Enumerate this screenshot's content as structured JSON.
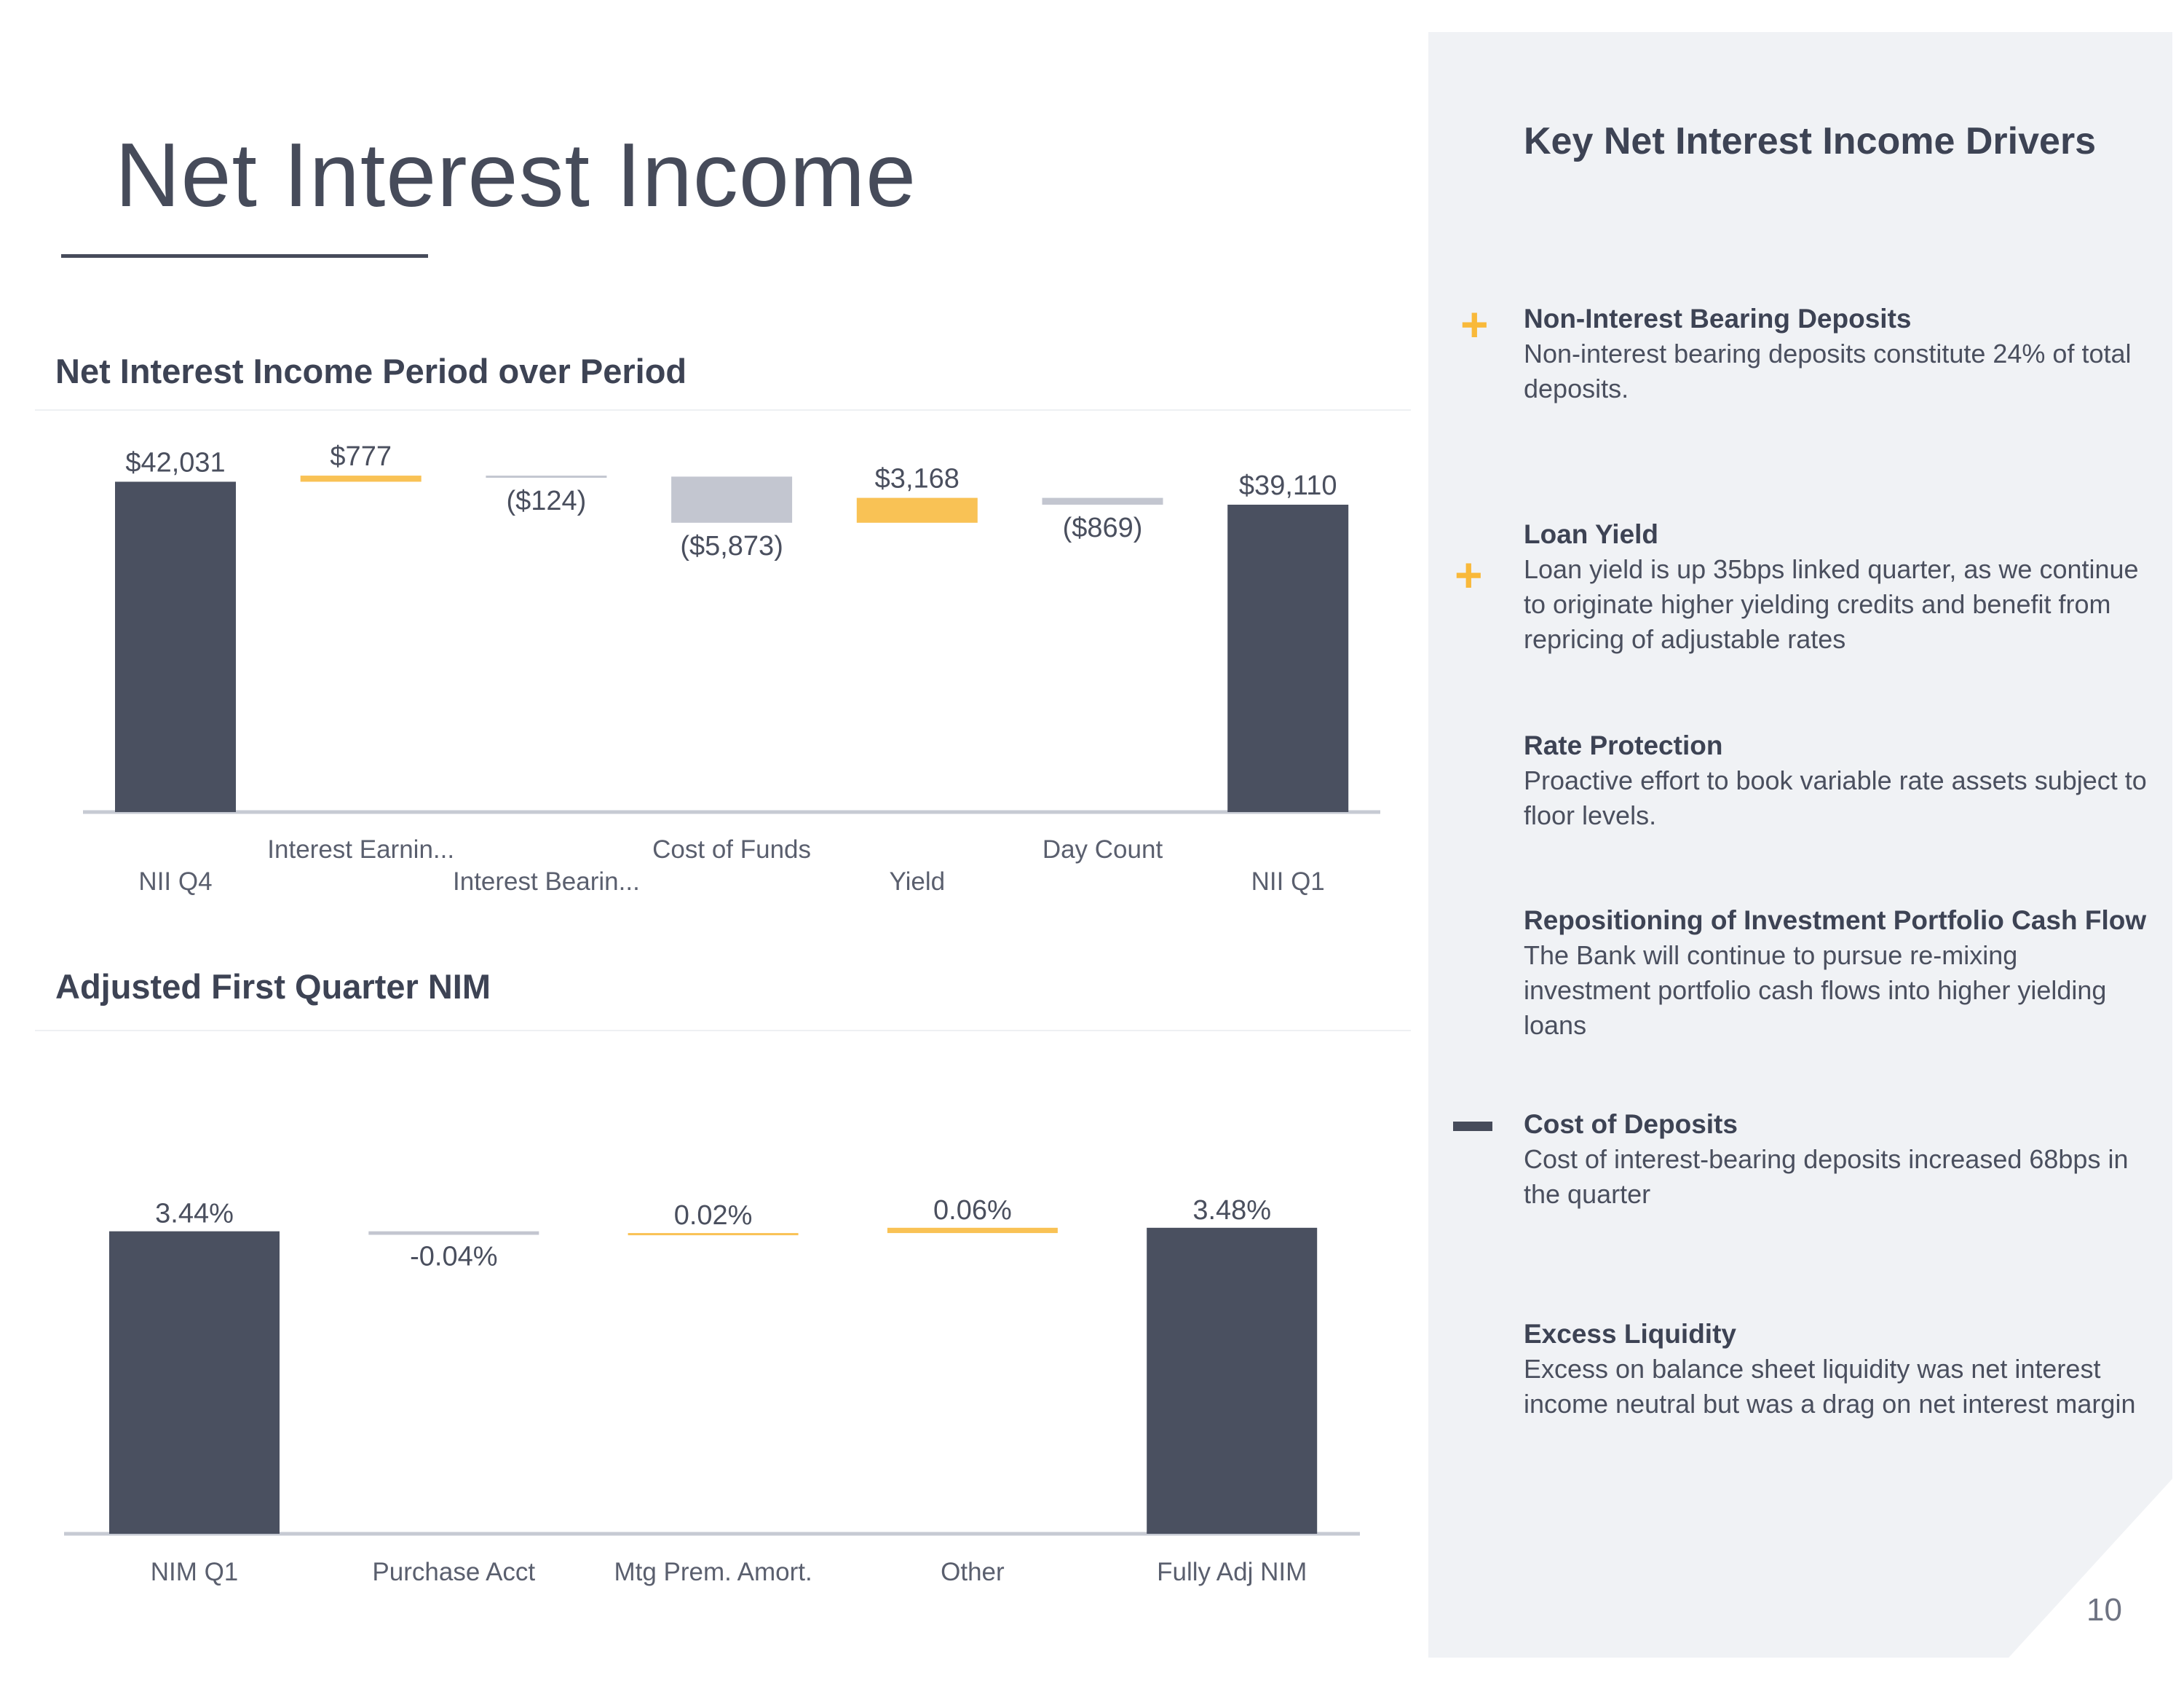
{
  "page": {
    "title": "Net Interest Income",
    "page_number": "10"
  },
  "colors": {
    "dark": "#4a5060",
    "gray": "#c3c6d0",
    "gold": "#f9c255",
    "axis": "#c6cad3"
  },
  "chart_data": [
    {
      "type": "bar",
      "subtype": "waterfall",
      "title": "Net Interest Income Period over Period",
      "categories": [
        "NII Q4",
        "Interest Earnin...",
        "Interest Bearin...",
        "Cost of Funds",
        "Yield",
        "Day Count",
        "NII Q1"
      ],
      "values": [
        42031,
        777,
        -124,
        -5873,
        3168,
        -869,
        39110
      ],
      "labels": [
        "$42,031",
        "$777",
        "($124)",
        "($5,873)",
        "$3,168",
        "($869)",
        "$39,110"
      ],
      "kinds": [
        "total",
        "increase",
        "decrease",
        "decrease",
        "increase",
        "decrease",
        "total"
      ],
      "axis_min": 0,
      "axis_max": 43000,
      "gridlines": false,
      "value_axis_shown": false
    },
    {
      "type": "bar",
      "subtype": "waterfall",
      "title": "Adjusted First Quarter NIM",
      "categories": [
        "NIM Q1",
        "Purchase Acct",
        "Mtg Prem. Amort.",
        "Other",
        "Fully Adj NIM"
      ],
      "values": [
        3.44,
        -0.04,
        0.02,
        0.06,
        3.48
      ],
      "labels": [
        "3.44%",
        "-0.04%",
        "0.02%",
        "0.06%",
        "3.48%"
      ],
      "kinds": [
        "total",
        "decrease",
        "increase",
        "increase",
        "total"
      ],
      "axis_min": 0,
      "axis_max": 3.52,
      "gridlines": false,
      "value_axis_shown": false
    }
  ],
  "panel": {
    "title": "Key Net Interest Income Drivers",
    "drivers": [
      {
        "marker": "plus",
        "title": "Non-Interest Bearing Deposits",
        "text": "Non-interest bearing deposits constitute 24% of total deposits."
      },
      {
        "marker": "plus",
        "title": "Loan Yield",
        "text": "Loan yield is up 35bps linked quarter, as we continue to originate higher yielding credits and benefit from repricing of adjustable rates"
      },
      {
        "marker": "none",
        "title": "Rate Protection",
        "text": "Proactive effort to book variable rate assets subject to floor levels."
      },
      {
        "marker": "none",
        "title": "Repositioning of Investment Portfolio Cash Flow",
        "text": "The Bank will continue to pursue re-mixing investment portfolio cash flows into higher yielding loans"
      },
      {
        "marker": "minus",
        "title": "Cost of Deposits",
        "text": "Cost of interest-bearing deposits increased 68bps in the quarter"
      },
      {
        "marker": "none",
        "title": "Excess Liquidity",
        "text": "Excess on balance sheet liquidity was net interest income neutral but was a drag on net interest margin"
      }
    ]
  }
}
